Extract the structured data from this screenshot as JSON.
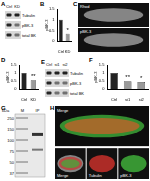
{
  "panels": {
    "A": {
      "letter": "A",
      "type": "blot",
      "band_labels": [
        "Tubulin",
        "pBK-3",
        "total BK"
      ],
      "lane_labels": [
        "Ctrl",
        "KD"
      ]
    },
    "C": {
      "letter": "C",
      "type": "image",
      "labels": [
        "Rhod",
        "pBK-3"
      ]
    },
    "E": {
      "letter": "E",
      "type": "blot",
      "band_labels": [
        "Tubulin",
        "pBK-3",
        "total BK"
      ],
      "lane_labels": [
        "Ctrl",
        "si1",
        "si2"
      ]
    },
    "G": {
      "letter": "G",
      "type": "gel",
      "title": "kDa",
      "ladder": [
        "250",
        "150",
        "100",
        "75",
        "50",
        "37"
      ],
      "lane_labels": [
        "M",
        "IP"
      ]
    },
    "H": {
      "letter": "H",
      "type": "image",
      "labels": [
        "Merge",
        "Tubulin",
        "pBK-3"
      ]
    }
  },
  "chart_data": [
    {
      "type": "bar",
      "title": "B",
      "categories": [
        "Ctrl",
        "KD"
      ],
      "values": [
        1.0,
        0.35
      ],
      "colors": [
        "#222222",
        "#9a9a9a"
      ],
      "ylim": [
        0,
        1.5
      ],
      "yticks": [
        0,
        0.5,
        1,
        1.5
      ],
      "y_label": "pBK-3",
      "annotations": [
        null,
        "*"
      ]
    },
    {
      "type": "bar",
      "title": "D",
      "categories": [
        "Ctrl",
        "KD"
      ],
      "values": [
        1.0,
        0.55
      ],
      "colors": [
        "#222222",
        "#9a9a9a"
      ],
      "ylim": [
        0,
        1.5
      ],
      "yticks": [
        0,
        0.5,
        1,
        1.5
      ],
      "y_label": "pBK-3",
      "annotations": [
        null,
        "**"
      ]
    },
    {
      "type": "bar",
      "title": "F",
      "categories": [
        "Ctrl",
        "si1",
        "si2"
      ],
      "values": [
        1.0,
        0.5,
        0.45
      ],
      "colors": [
        "#222222",
        "#9a9a9a",
        "#9a9a9a"
      ],
      "ylim": [
        0,
        1.5
      ],
      "yticks": [
        0,
        0.5,
        1,
        1.5
      ],
      "y_label": "pBK-3",
      "annotations": [
        null,
        "**",
        "*"
      ]
    }
  ]
}
